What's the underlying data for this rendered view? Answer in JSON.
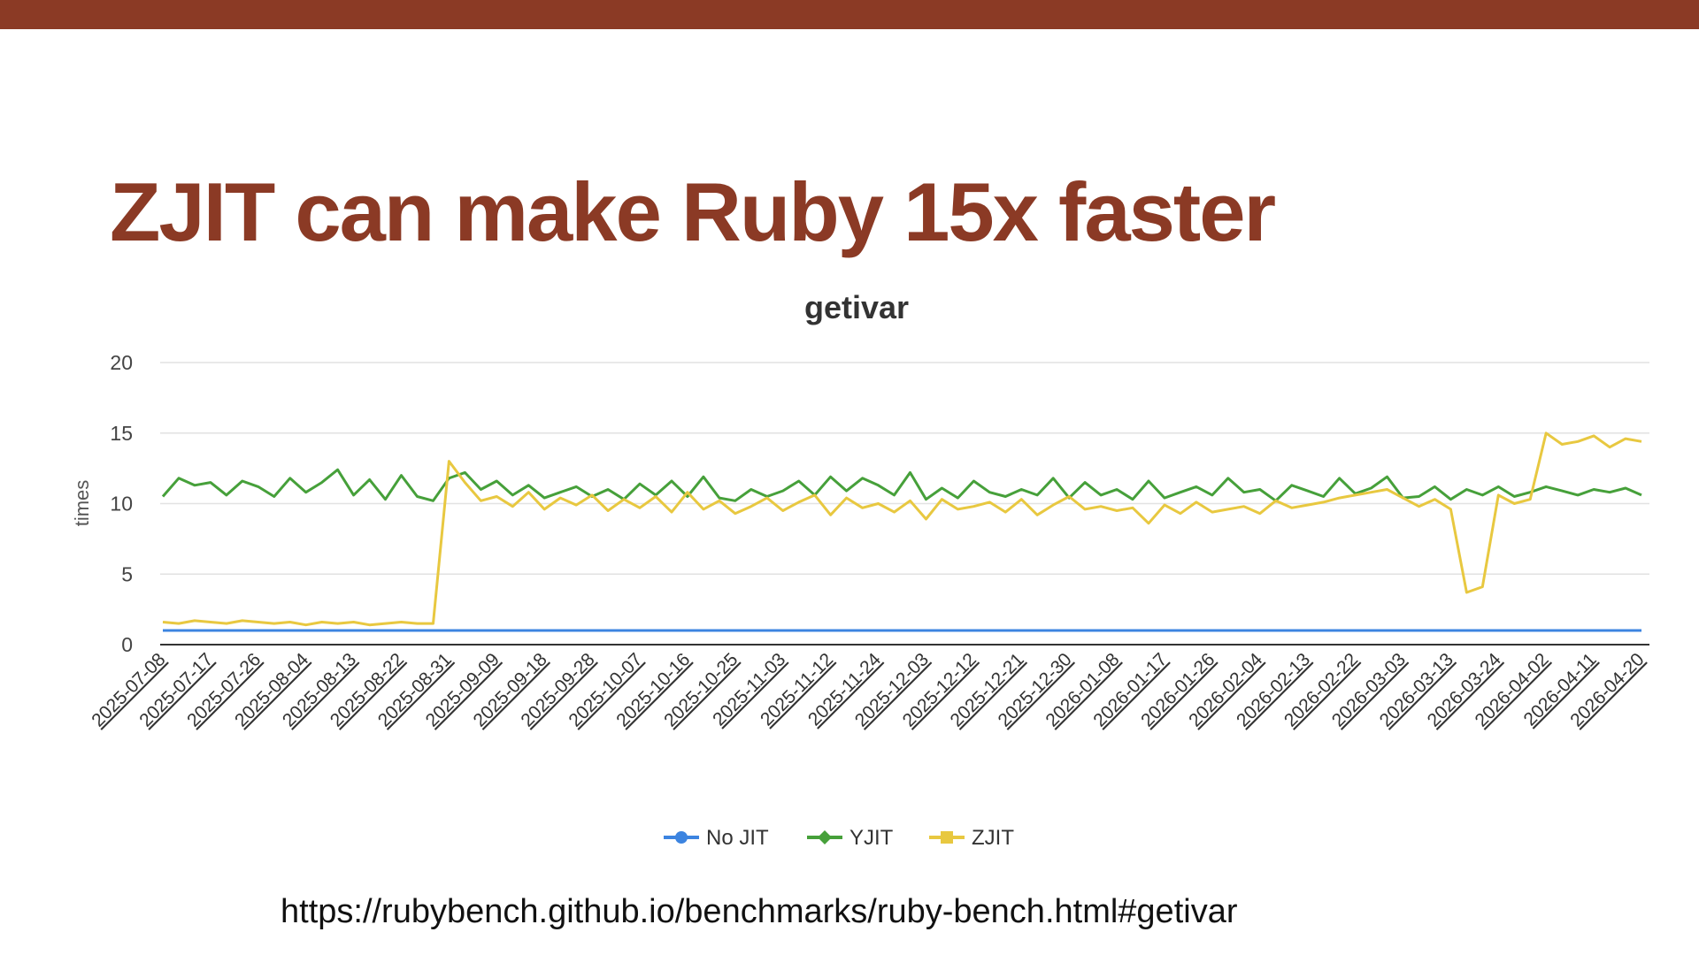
{
  "slide": {
    "title": "ZJIT can make Ruby 15x faster",
    "url": "https://rubybench.github.io/benchmarks/ruby-bench.html#getivar"
  },
  "chart_data": {
    "type": "line",
    "title": "getivar",
    "y_label": "times",
    "categories": [
      "2025-07-08",
      null,
      null,
      "2025-07-17",
      null,
      null,
      "2025-07-26",
      null,
      null,
      "2025-08-04",
      null,
      null,
      "2025-08-13",
      null,
      null,
      "2025-08-22",
      null,
      null,
      "2025-08-31",
      null,
      null,
      "2025-09-09",
      null,
      null,
      "2025-09-18",
      null,
      null,
      "2025-09-28",
      null,
      null,
      "2025-10-07",
      null,
      null,
      "2025-10-16",
      null,
      null,
      "2025-10-25",
      null,
      null,
      "2025-11-03",
      null,
      null,
      "2025-11-12",
      null,
      null,
      "2025-11-24",
      null,
      null,
      "2025-12-03",
      null,
      null,
      "2025-12-12",
      null,
      null,
      "2025-12-21",
      null,
      null,
      "2025-12-30",
      null,
      null,
      "2026-01-08",
      null,
      null,
      "2026-01-17",
      null,
      null,
      "2026-01-26",
      null,
      null,
      "2026-02-04",
      null,
      null,
      "2026-02-13",
      null,
      null,
      "2026-02-22",
      null,
      null,
      "2026-03-03",
      null,
      null,
      "2026-03-13",
      null,
      null,
      "2026-03-24",
      null,
      null,
      "2026-04-02",
      null,
      null,
      "2026-04-11",
      null,
      null,
      "2026-04-20"
    ],
    "series": [
      {
        "name": "No JIT",
        "color": "#3c84e0",
        "marker": "circle",
        "values": [
          1,
          1,
          1,
          1,
          1,
          1,
          1,
          1,
          1,
          1,
          1,
          1,
          1,
          1,
          1,
          1,
          1,
          1,
          1,
          1,
          1,
          1,
          1,
          1,
          1,
          1,
          1,
          1,
          1,
          1,
          1,
          1,
          1,
          1,
          1,
          1,
          1,
          1,
          1,
          1,
          1,
          1,
          1,
          1,
          1,
          1,
          1,
          1,
          1,
          1,
          1,
          1,
          1,
          1,
          1,
          1,
          1,
          1,
          1,
          1,
          1,
          1,
          1,
          1,
          1,
          1,
          1,
          1,
          1,
          1,
          1,
          1,
          1,
          1,
          1,
          1,
          1,
          1,
          1,
          1,
          1,
          1,
          1,
          1,
          1,
          1,
          1,
          1,
          1,
          1,
          1,
          1,
          1,
          1
        ]
      },
      {
        "name": "YJIT",
        "color": "#46a03a",
        "marker": "diamond",
        "values": [
          10.5,
          11.8,
          11.3,
          11.5,
          10.6,
          11.6,
          11.2,
          10.5,
          11.8,
          10.8,
          11.5,
          12.4,
          10.6,
          11.7,
          10.3,
          12.0,
          10.5,
          10.2,
          11.8,
          12.2,
          11.0,
          11.6,
          10.6,
          11.3,
          10.4,
          10.8,
          11.2,
          10.5,
          11.0,
          10.3,
          11.4,
          10.6,
          11.6,
          10.5,
          11.9,
          10.4,
          10.2,
          11.0,
          10.5,
          10.9,
          11.6,
          10.6,
          11.9,
          10.9,
          11.8,
          11.3,
          10.6,
          12.2,
          10.3,
          11.1,
          10.4,
          11.6,
          10.8,
          10.5,
          11.0,
          10.6,
          11.8,
          10.4,
          11.5,
          10.6,
          11.0,
          10.3,
          11.6,
          10.4,
          10.8,
          11.2,
          10.6,
          11.8,
          10.8,
          11.0,
          10.2,
          11.3,
          10.9,
          10.5,
          11.8,
          10.7,
          11.1,
          11.9,
          10.4,
          10.5,
          11.2,
          10.3,
          11.0,
          10.6,
          11.2,
          10.5,
          10.8,
          11.2,
          10.9,
          10.6,
          11.0,
          10.8,
          11.1,
          10.6
        ]
      },
      {
        "name": "ZJIT",
        "color": "#e8c840",
        "marker": "square",
        "values": [
          1.6,
          1.5,
          1.7,
          1.6,
          1.5,
          1.7,
          1.6,
          1.5,
          1.6,
          1.4,
          1.6,
          1.5,
          1.6,
          1.4,
          1.5,
          1.6,
          1.5,
          1.5,
          13.0,
          11.5,
          10.2,
          10.5,
          9.8,
          10.8,
          9.6,
          10.4,
          9.9,
          10.6,
          9.5,
          10.3,
          9.7,
          10.5,
          9.4,
          10.8,
          9.6,
          10.2,
          9.3,
          9.8,
          10.4,
          9.5,
          10.1,
          10.6,
          9.2,
          10.4,
          9.7,
          10.0,
          9.4,
          10.2,
          8.9,
          10.3,
          9.6,
          9.8,
          10.1,
          9.4,
          10.3,
          9.2,
          9.9,
          10.5,
          9.6,
          9.8,
          9.5,
          9.7,
          8.6,
          9.9,
          9.3,
          10.1,
          9.4,
          9.6,
          9.8,
          9.3,
          10.2,
          9.7,
          9.9,
          10.1,
          10.4,
          10.6,
          10.8,
          11.0,
          10.4,
          9.8,
          10.3,
          9.6,
          3.7,
          4.1,
          10.6,
          10.0,
          10.3,
          15.0,
          14.2,
          14.4,
          14.8,
          14.0,
          14.6,
          14.4
        ]
      }
    ],
    "ylim": [
      0,
      20
    ],
    "yticks": [
      0,
      5,
      10,
      15,
      20
    ],
    "grid": true,
    "legend": "bottom"
  }
}
